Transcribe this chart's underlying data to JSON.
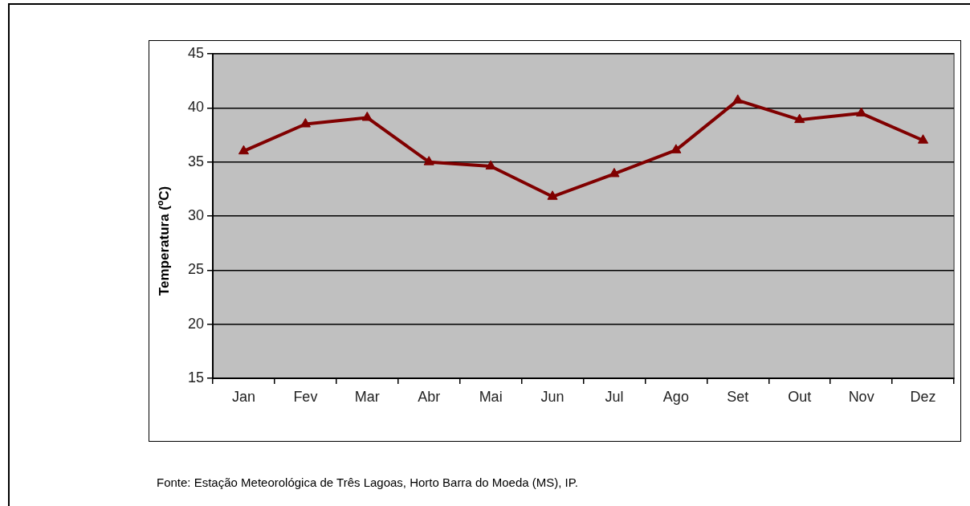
{
  "chart_data": {
    "type": "line",
    "ylabel": "Temperatura (ºC)",
    "categories": [
      "Jan",
      "Fev",
      "Mar",
      "Abr",
      "Mai",
      "Jun",
      "Jul",
      "Ago",
      "Set",
      "Out",
      "Nov",
      "Dez"
    ],
    "series": [
      {
        "color": "#800000",
        "values": [
          36.0,
          38.5,
          39.1,
          35.0,
          34.6,
          31.8,
          33.9,
          36.1,
          40.7,
          38.9,
          39.5,
          37.0
        ]
      }
    ],
    "ylim": [
      15,
      45
    ],
    "yticks": [
      15,
      20,
      25,
      30,
      35,
      40,
      45
    ],
    "grid": "y",
    "legend": false,
    "marker": "triangle",
    "line_style": "solid",
    "annotations": [
      "Fonte: Estação Meteorológica de Três Lagoas, Horto Barra do Moeda (MS), IP."
    ]
  }
}
